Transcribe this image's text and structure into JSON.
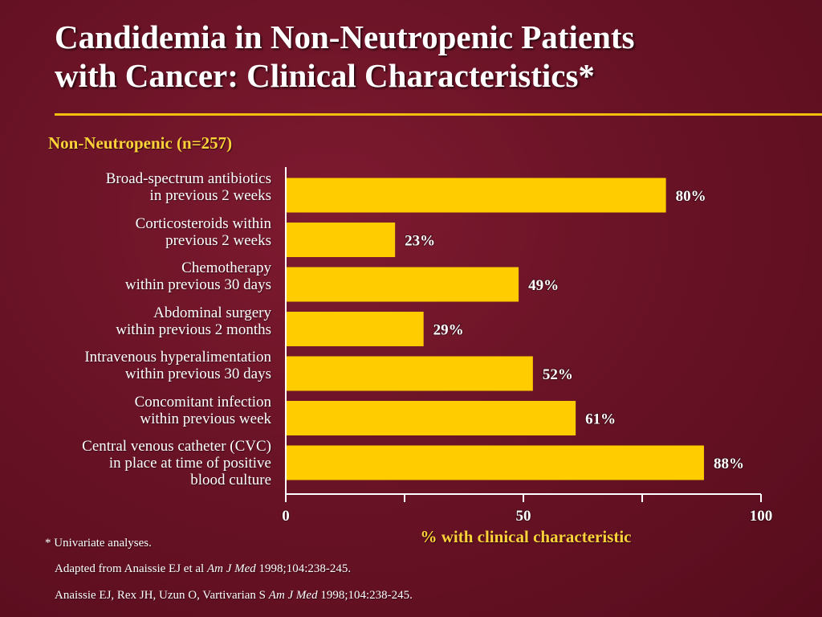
{
  "title_lines": [
    "Candidemia in Non-Neutropenic Patients",
    "with Cancer: Clinical Characteristics*"
  ],
  "subtitle": "Non-Neutropenic (n=257)",
  "colors": {
    "bar": "#ffcc00",
    "accent_text": "#ffd23a",
    "rule": "#f2c10f",
    "background": "#6a1326"
  },
  "chart_data": {
    "type": "bar",
    "orientation": "horizontal",
    "categories": [
      [
        "Broad-spectrum antibiotics",
        "in previous 2 weeks"
      ],
      [
        "Corticosteroids within",
        "previous 2 weeks"
      ],
      [
        "Chemotherapy",
        "within previous 30 days"
      ],
      [
        "Abdominal surgery",
        "within previous 2 months"
      ],
      [
        "Intravenous  hyperalimentation",
        "within previous 30 days"
      ],
      [
        "Concomitant infection",
        "within previous week"
      ],
      [
        "Central venous catheter (CVC)",
        "in place at time of positive",
        "blood culture"
      ]
    ],
    "values": [
      80,
      23,
      49,
      29,
      52,
      61,
      88
    ],
    "data_labels": [
      "80%",
      "23%",
      "49%",
      "29%",
      "52%",
      "61%",
      "88%"
    ],
    "xlim": [
      0,
      100
    ],
    "x_ticks": [
      0,
      50,
      100
    ],
    "x_tick_labels": [
      "0",
      "50",
      "100"
    ],
    "xlabel": "% with clinical characteristic",
    "grid": false
  },
  "footnotes": {
    "note": "* Univariate analyses.",
    "source1_pre": "Adapted from Anaissie EJ et al ",
    "source1_journal": "Am J Med",
    "source1_post": " 1998;104:238-245.",
    "source2_pre": "Anaissie EJ, Rex JH, Uzun O, Vartivarian S ",
    "source2_journal": "Am J Med",
    "source2_post": " 1998;104:238-245."
  }
}
